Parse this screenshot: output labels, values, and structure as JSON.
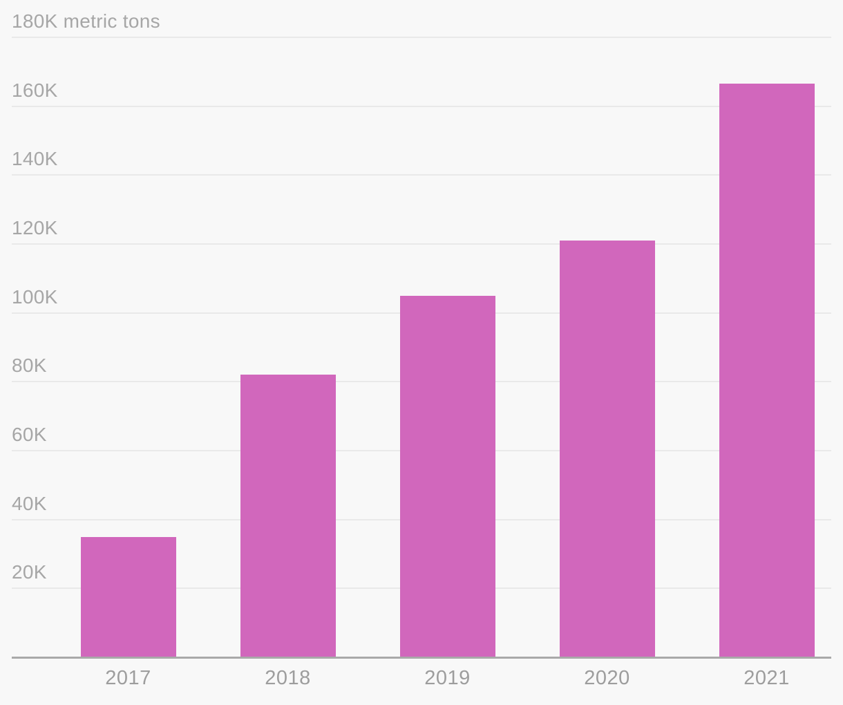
{
  "chart_data": {
    "type": "bar",
    "title": "",
    "unit": "metric tons",
    "categories": [
      "2017",
      "2018",
      "2019",
      "2020",
      "2021"
    ],
    "values": [
      35000,
      82000,
      105000,
      121000,
      166500
    ],
    "ylim": [
      0,
      180000
    ],
    "ytick_interval": 20000,
    "grid": true,
    "legend_position": null,
    "yticks": [
      {
        "value": 180000,
        "label": "180K metric tons"
      },
      {
        "value": 160000,
        "label": "160K"
      },
      {
        "value": 140000,
        "label": "140K"
      },
      {
        "value": 120000,
        "label": "120K"
      },
      {
        "value": 100000,
        "label": "100K"
      },
      {
        "value": 80000,
        "label": "80K"
      },
      {
        "value": 60000,
        "label": "60K"
      },
      {
        "value": 40000,
        "label": "40K"
      },
      {
        "value": 20000,
        "label": "20K"
      }
    ],
    "colors": {
      "bar": "#d167bc",
      "background": "#f8f8f8",
      "gridline": "#e9e9e9",
      "axis": "#a9a9a9",
      "ytick_label": "#a6a6a6",
      "xtick_label": "#9d9d9d"
    }
  }
}
